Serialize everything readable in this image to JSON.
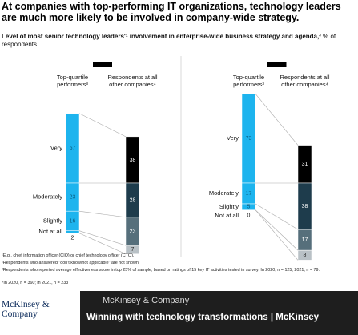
{
  "title": "At companies with top-performing IT organizations, technology leaders are much more likely to be involved in company-wide strategy.",
  "subtitle": "Level of most senior technology leaders'¹ involvement in enterprise-wide business strategy and agenda,²",
  "subtitle_unit": "% of respondents",
  "chart_data": [
    {
      "type": "bar",
      "categories": [
        "Top-quartile performers³",
        "Respondents at all other companies⁴"
      ],
      "highlight_color": "#1db4ee",
      "series": [
        {
          "name": "Very",
          "color": "#000000",
          "values": [
            57,
            38
          ]
        },
        {
          "name": "Moderately",
          "color": "#1e3c4c",
          "values": [
            23,
            28
          ]
        },
        {
          "name": "Slightly",
          "color": "#566f7b",
          "values": [
            16,
            23
          ]
        },
        {
          "name": "Not at all",
          "color": "#b9c1c6",
          "values": [
            2,
            7
          ]
        }
      ]
    },
    {
      "type": "bar",
      "categories": [
        "Top-quartile performers³",
        "Respondents at all other companies⁴"
      ],
      "highlight_color": "#1db4ee",
      "series": [
        {
          "name": "Very",
          "color": "#000000",
          "values": [
            73,
            31
          ]
        },
        {
          "name": "Moderately",
          "color": "#1e3c4c",
          "values": [
            17,
            38
          ]
        },
        {
          "name": "Slightly",
          "color": "#566f7b",
          "values": [
            5,
            17
          ]
        },
        {
          "name": "Not at all",
          "color": "#b9c1c6",
          "values": [
            0,
            8
          ]
        }
      ]
    }
  ],
  "footnotes": [
    "¹E.g., chief information officer (CIO) or chief technology officer (CTO).",
    "²Respondents who answered \"don't know/not applicable\" are not shown.",
    "³Respondents who reported average effectiveness score in top 25% of sample; based on ratings of 15 key IT activities tested in survey. In 2020, n = 125; 2021, n = 79.",
    "⁴In 2020, n = 360; in 2021, n = 233"
  ],
  "overlay": {
    "logo": "McKinsey & Company",
    "source": "McKinsey & Company",
    "headline": "Winning with technology transformations | McKinsey"
  }
}
